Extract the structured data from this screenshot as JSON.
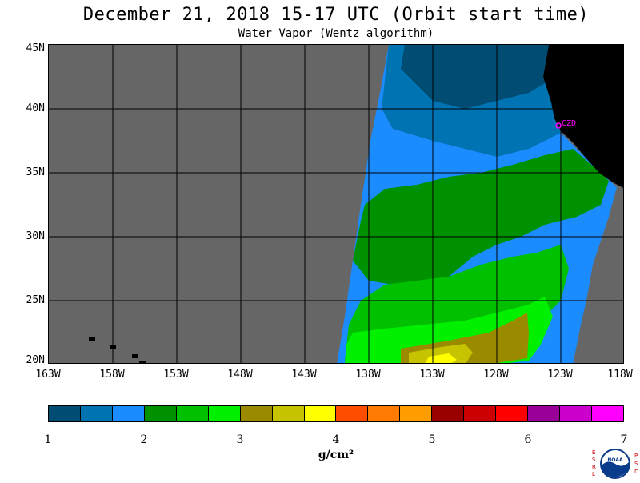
{
  "title": "December 21, 2018  15-17 UTC  (Orbit start time)",
  "subtitle": "Water Vapor (Wentz algorithm)",
  "map": {
    "lat_labels": [
      "45N",
      "40N",
      "35N",
      "30N",
      "25N",
      "20N"
    ],
    "lon_labels": [
      "163W",
      "158W",
      "153W",
      "148W",
      "143W",
      "138W",
      "133W",
      "128W",
      "123W",
      "118W"
    ],
    "station_label": "CZD",
    "colors": {
      "no_data": "#666666",
      "land": "#000000",
      "station": "#ff00ff"
    }
  },
  "colorbar": {
    "colors": [
      "#004c73",
      "#0073b3",
      "#1a8cff",
      "#009100",
      "#00c000",
      "#00f000",
      "#998a00",
      "#c6c400",
      "#ffff00",
      "#ff4d00",
      "#ff7a00",
      "#ff9c00",
      "#990000",
      "#cc0000",
      "#ff0000",
      "#990099",
      "#cc00cc",
      "#ff00ff"
    ],
    "tick_labels": [
      "1",
      "2",
      "3",
      "4",
      "5",
      "6",
      "7"
    ],
    "unit": "g/cm²"
  },
  "chart_data": {
    "type": "heatmap",
    "title": "December 21, 2018  15-17 UTC  (Orbit start time)",
    "subtitle": "Water Vapor (Wentz algorithm)",
    "x_range_deg_lon": [
      -163,
      -118
    ],
    "y_range_deg_lat": [
      20,
      45
    ],
    "colorbar_range": [
      1,
      7
    ],
    "colorbar_unit": "g/cm²"
  },
  "logo": {
    "left_letters": [
      "E",
      "S",
      "R",
      "L"
    ],
    "right_letters": [
      "P",
      "S",
      "D"
    ],
    "center_text": "NOAA"
  }
}
